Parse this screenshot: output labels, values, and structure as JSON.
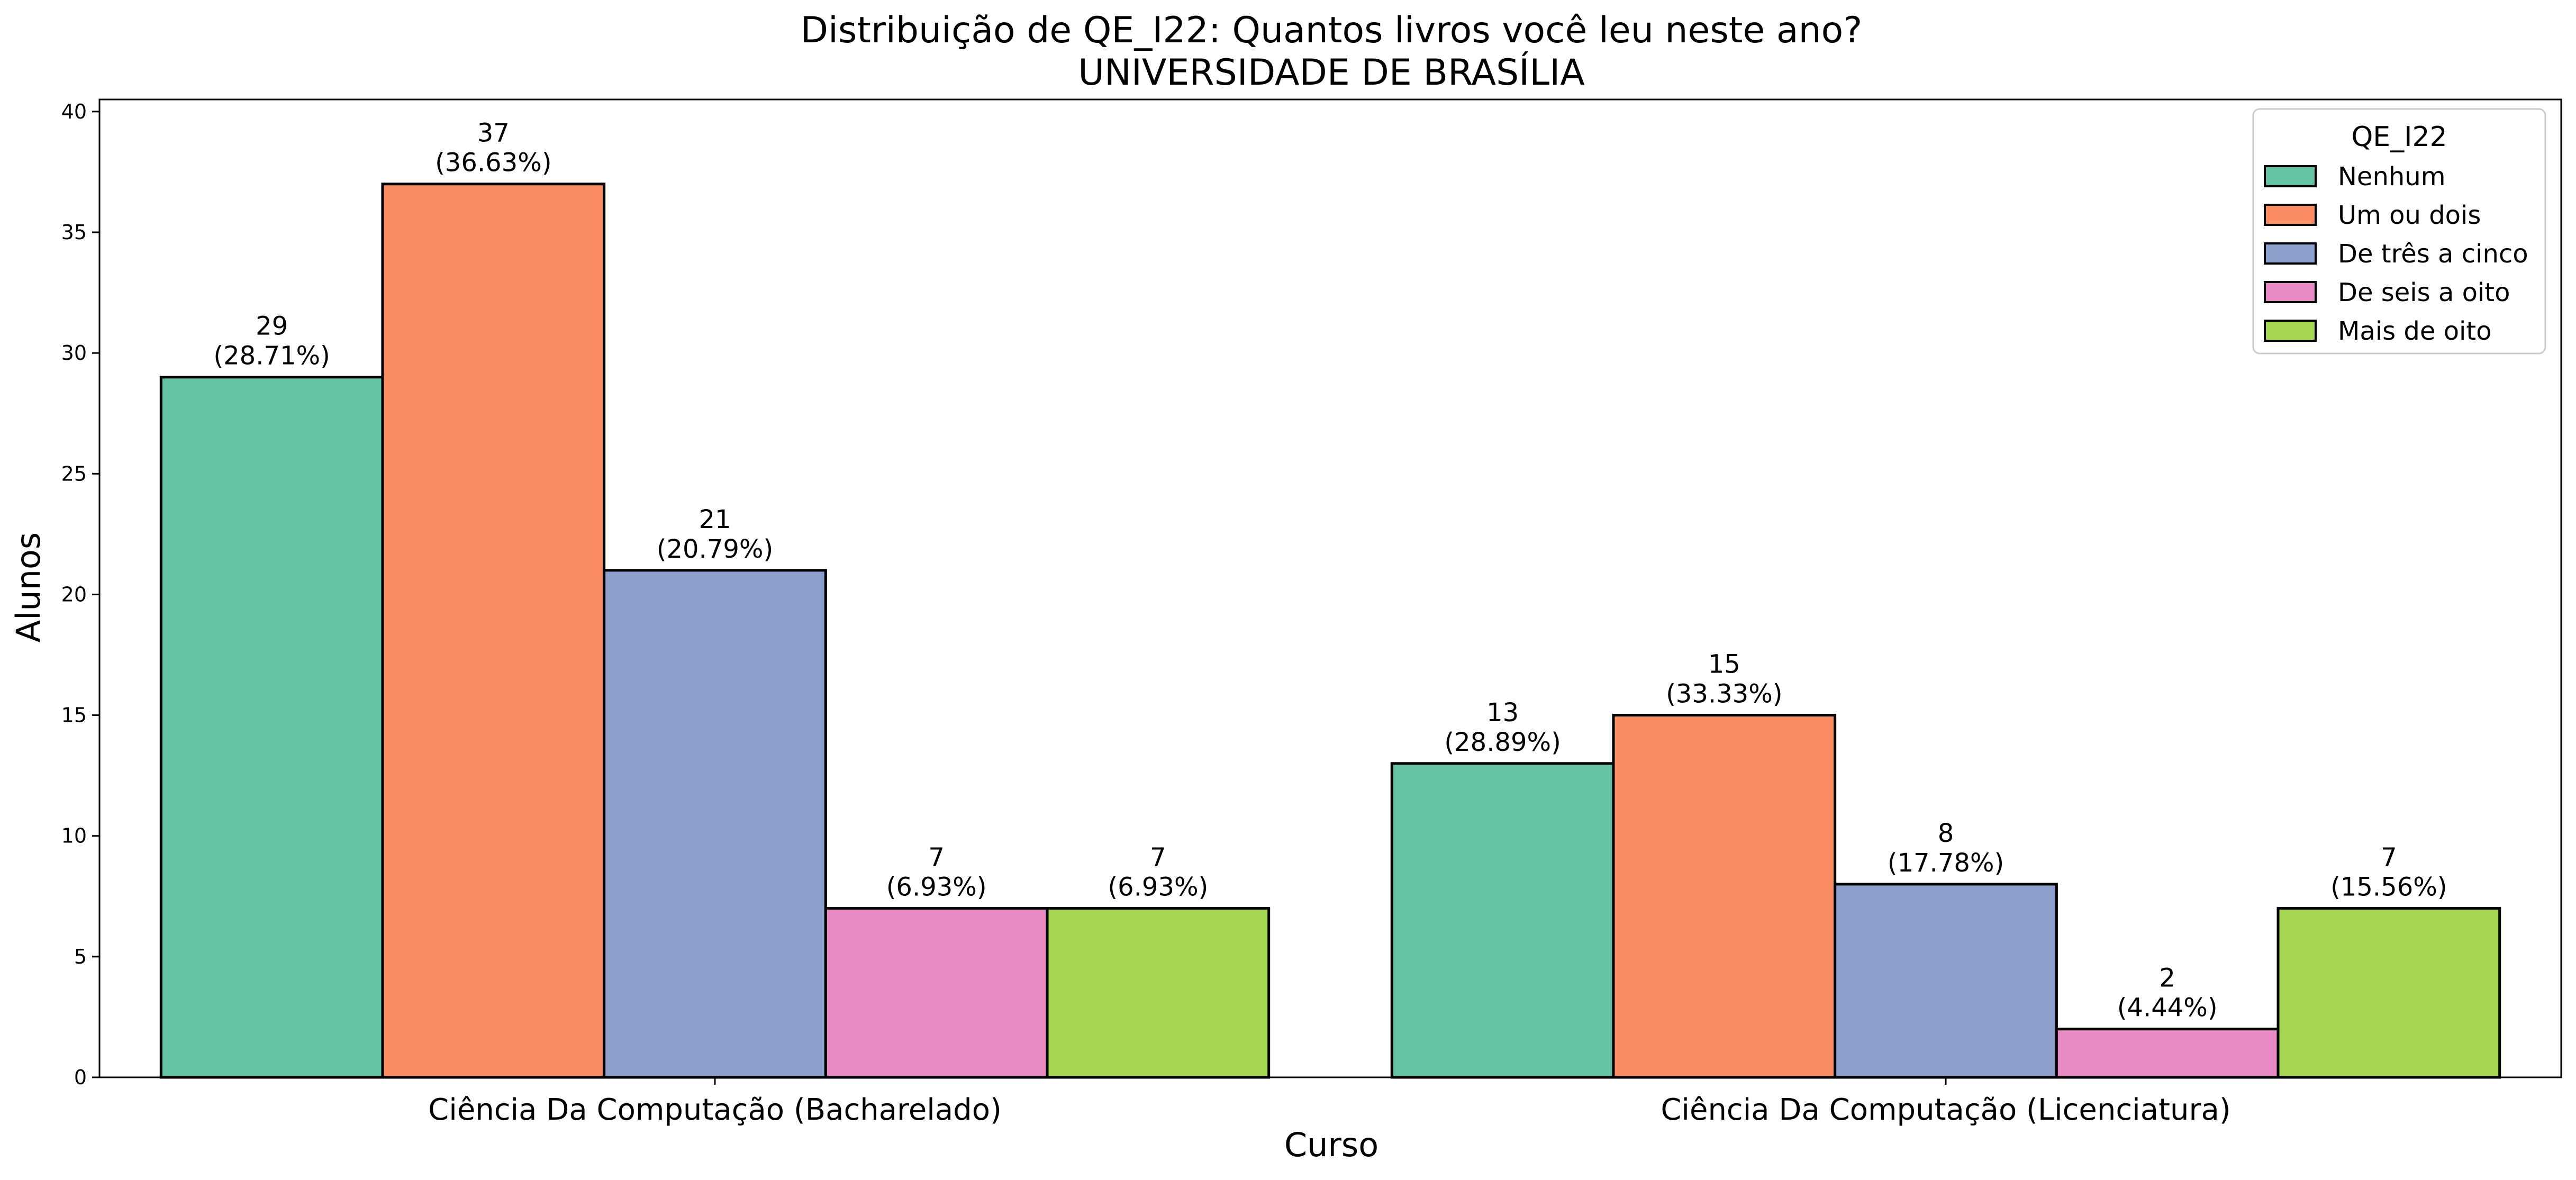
{
  "chart_data": {
    "type": "bar",
    "title": "Distribuição de QE_I22: Quantos livros você leu neste ano?",
    "subtitle": "UNIVERSIDADE DE BRASÍLIA",
    "xlabel": "Curso",
    "ylabel": "Alunos",
    "ylim": [
      0,
      40.5
    ],
    "yticks": [
      0,
      5,
      10,
      15,
      20,
      25,
      30,
      35,
      40
    ],
    "grid": false,
    "legend": {
      "title": "QE_I22",
      "placement": "top-right"
    },
    "categories": [
      "Ciência Da Computação (Bacharelado)",
      "Ciência Da Computação (Licenciatura)"
    ],
    "series": [
      {
        "name": "Nenhum",
        "color": "#66c2a5",
        "values": [
          29,
          13
        ],
        "labels": [
          "(28.71%)",
          "(28.89%)"
        ]
      },
      {
        "name": "Um ou dois",
        "color": "#fc8d62",
        "values": [
          37,
          15
        ],
        "labels": [
          "(36.63%)",
          "(33.33%)"
        ]
      },
      {
        "name": "De três a cinco",
        "color": "#8da0cb",
        "values": [
          21,
          8
        ],
        "labels": [
          "(20.79%)",
          "(17.78%)"
        ]
      },
      {
        "name": "De seis a oito",
        "color": "#e78ac3",
        "values": [
          7,
          2
        ],
        "labels": [
          "(6.93%)",
          "(4.44%)"
        ]
      },
      {
        "name": "Mais de oito",
        "color": "#a6d854",
        "values": [
          7,
          7
        ],
        "labels": [
          "(6.93%)",
          "(15.56%)"
        ]
      }
    ]
  }
}
